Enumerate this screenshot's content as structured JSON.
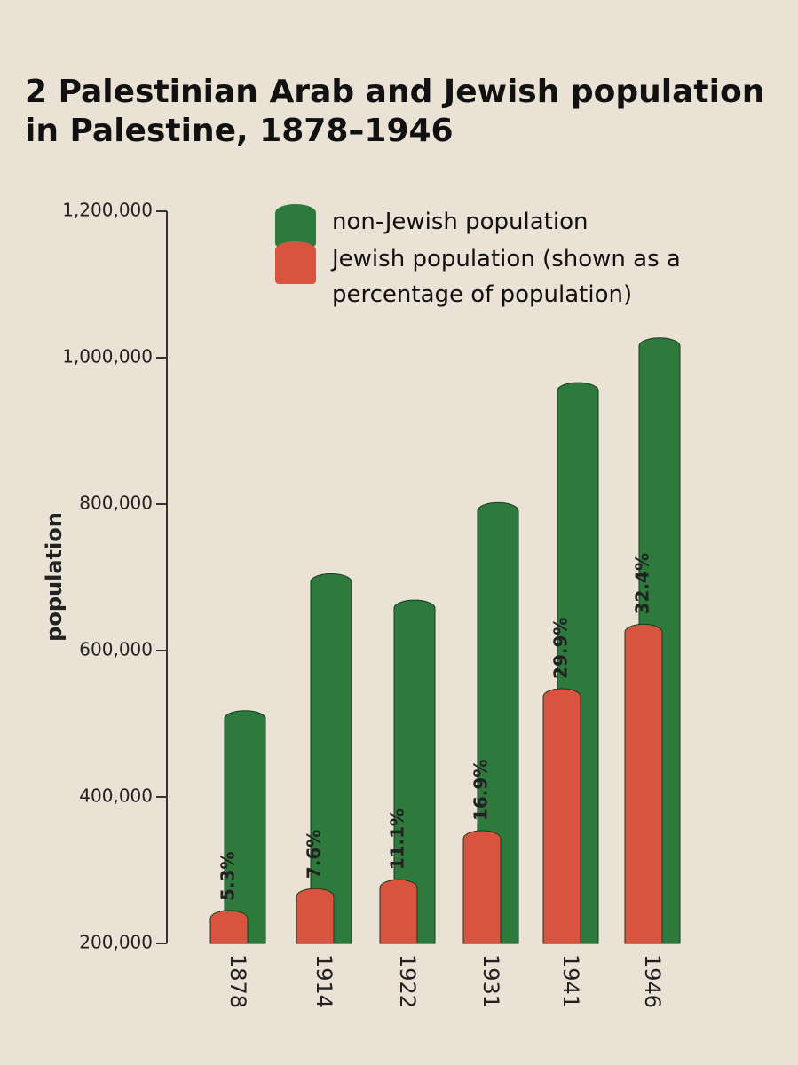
{
  "chart_data": {
    "type": "bar",
    "title": "2 Palestinian Arab and Jewish population in Palestine, 1878–1946",
    "y_label": "population",
    "categories": [
      "1878",
      "1914",
      "1922",
      "1931",
      "1941",
      "1946"
    ],
    "series": [
      {
        "name": "non-Jewish population",
        "color": "#2e7a3c",
        "values": [
          507000,
          694000,
          658000,
          791000,
          955000,
          1016000
        ]
      },
      {
        "name": "Jewish population (shown as a percentage of population)",
        "color": "#d9543e",
        "values": [
          234000,
          264000,
          276000,
          343000,
          537000,
          625000
        ],
        "annotations": [
          "5.3%",
          "7.6%",
          "11.1%",
          "16.9%",
          "29.9%",
          "32.4%"
        ]
      }
    ],
    "ylim": [
      200000,
      1200000
    ],
    "yticks": [
      {
        "value": 200000,
        "label": "200,000"
      },
      {
        "value": 400000,
        "label": "400,000"
      },
      {
        "value": 600000,
        "label": "600,000"
      },
      {
        "value": 800000,
        "label": "800,000"
      },
      {
        "value": 1000000,
        "label": "1,000,000"
      },
      {
        "value": 1200000,
        "label": "1,200,000"
      }
    ]
  }
}
